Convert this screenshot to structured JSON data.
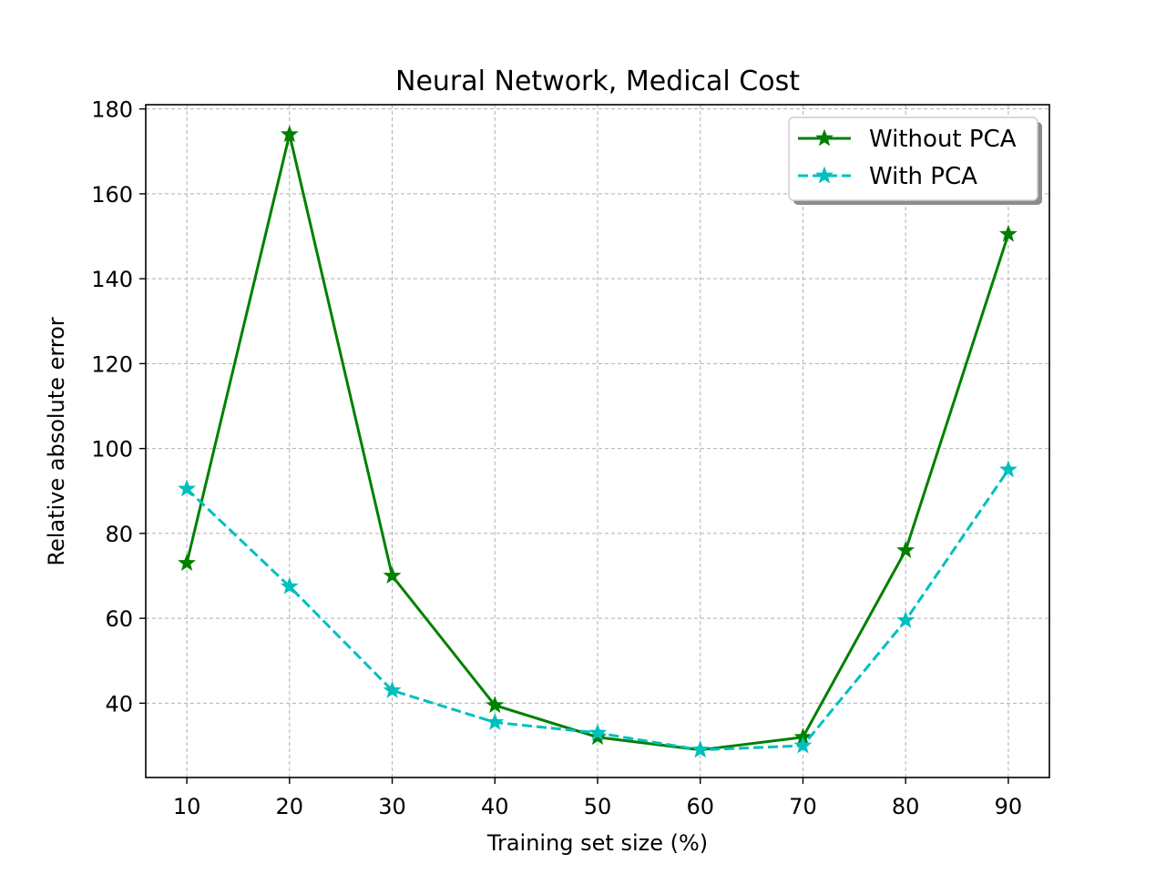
{
  "chart_data": {
    "type": "line",
    "title": "Neural Network, Medical Cost",
    "xlabel": "Training set size (%)",
    "ylabel": "Relative absolute error",
    "x": [
      10,
      20,
      30,
      40,
      50,
      60,
      70,
      80,
      90
    ],
    "xlim": [
      6,
      94
    ],
    "ylim": [
      22.5,
      181
    ],
    "xticks": [
      10,
      20,
      30,
      40,
      50,
      60,
      70,
      80,
      90
    ],
    "yticks": [
      40,
      60,
      80,
      100,
      120,
      140,
      160,
      180
    ],
    "grid": true,
    "legend_position": "upper-right",
    "series": [
      {
        "name": "Without PCA",
        "color": "#008000",
        "line_style": "solid",
        "marker": "star",
        "values": [
          73,
          174,
          70,
          39.5,
          32,
          29,
          32,
          76,
          150.5
        ]
      },
      {
        "name": "With PCA",
        "color": "#00bfbf",
        "line_style": "dashed",
        "marker": "star",
        "values": [
          90.5,
          67.5,
          43,
          35.5,
          33,
          29,
          30,
          59.5,
          95
        ]
      }
    ]
  }
}
